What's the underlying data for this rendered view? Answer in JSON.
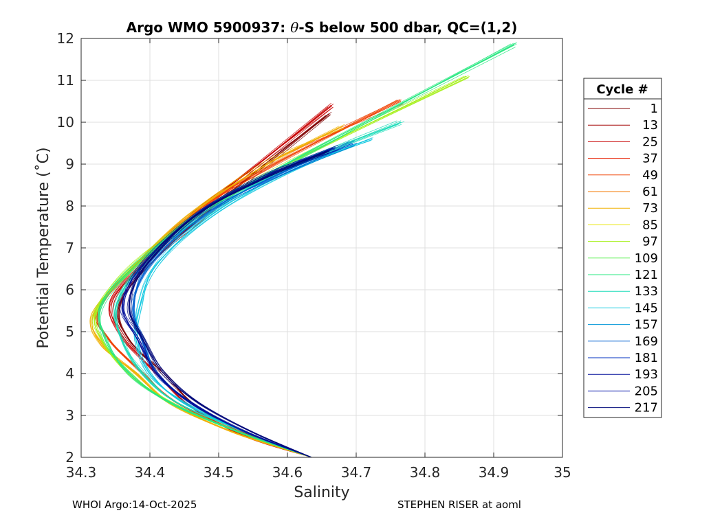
{
  "chart_data": {
    "type": "line",
    "title_prefix": "Argo WMO 5900937: ",
    "title_symbol": "θ",
    "title_suffix": "-S below 500 dbar,  QC=(1,2)",
    "xlabel": "Salinity",
    "ylabel": "Potential Temperature (˚C)",
    "xlim": [
      34.3,
      35
    ],
    "ylim": [
      2,
      12
    ],
    "xticks": [
      "34.3",
      "34.4",
      "34.5",
      "34.6",
      "34.7",
      "34.8",
      "34.9",
      "35"
    ],
    "yticks": [
      "2",
      "3",
      "4",
      "5",
      "6",
      "7",
      "8",
      "9",
      "10",
      "11",
      "12"
    ],
    "grid": true,
    "legend": {
      "title": "Cycle #",
      "placement": "right-outside",
      "entries": [
        {
          "label": "1",
          "color": "#800000"
        },
        {
          "label": "13",
          "color": "#a30000"
        },
        {
          "label": "25",
          "color": "#c80000"
        },
        {
          "label": "37",
          "color": "#e61e00"
        },
        {
          "label": "49",
          "color": "#f04000"
        },
        {
          "label": "61",
          "color": "#f57800"
        },
        {
          "label": "73",
          "color": "#f0b000"
        },
        {
          "label": "85",
          "color": "#e8e600"
        },
        {
          "label": "97",
          "color": "#a6f01a"
        },
        {
          "label": "109",
          "color": "#5af050"
        },
        {
          "label": "121",
          "color": "#28e880"
        },
        {
          "label": "133",
          "color": "#1adcb8"
        },
        {
          "label": "145",
          "color": "#10c8e0"
        },
        {
          "label": "157",
          "color": "#0094d8"
        },
        {
          "label": "169",
          "color": "#0060d0"
        },
        {
          "label": "181",
          "color": "#0030c0"
        },
        {
          "label": "193",
          "color": "#000e9a"
        },
        {
          "label": "205",
          "color": "#0010a8"
        },
        {
          "label": "217",
          "color": "#00087a"
        }
      ]
    },
    "series": [
      {
        "name": "cycle 1",
        "color": "#800000",
        "x": [
          34.635,
          34.55,
          34.47,
          34.42,
          34.37,
          34.355,
          34.4,
          34.48,
          34.56,
          34.66
        ],
        "y": [
          2.0,
          2.5,
          3.2,
          4.0,
          4.8,
          5.6,
          6.6,
          7.8,
          8.9,
          10.2
        ]
      },
      {
        "name": "cycle 25",
        "color": "#c80000",
        "x": [
          34.635,
          34.54,
          34.46,
          34.41,
          34.36,
          34.345,
          34.395,
          34.47,
          34.55,
          34.665
        ],
        "y": [
          2.0,
          2.5,
          3.2,
          4.0,
          4.9,
          5.7,
          6.7,
          7.9,
          8.9,
          10.4
        ]
      },
      {
        "name": "cycle 49",
        "color": "#f04000",
        "x": [
          34.635,
          34.53,
          34.44,
          34.39,
          34.34,
          34.325,
          34.38,
          34.47,
          34.58,
          34.765
        ],
        "y": [
          2.0,
          2.6,
          3.3,
          4.0,
          4.8,
          5.5,
          6.6,
          7.9,
          9.0,
          10.5
        ]
      },
      {
        "name": "cycle 73",
        "color": "#f0b000",
        "x": [
          34.635,
          34.52,
          34.43,
          34.38,
          34.33,
          34.318,
          34.37,
          34.46,
          34.57,
          34.68
        ],
        "y": [
          2.0,
          2.6,
          3.3,
          4.0,
          4.7,
          5.4,
          6.4,
          7.8,
          9.0,
          9.9
        ]
      },
      {
        "name": "cycle 97",
        "color": "#a6f01a",
        "x": [
          34.635,
          34.53,
          34.43,
          34.37,
          34.33,
          34.322,
          34.37,
          34.47,
          34.6,
          34.86
        ],
        "y": [
          2.0,
          2.6,
          3.3,
          4.0,
          4.8,
          5.5,
          6.5,
          7.8,
          9.0,
          11.1
        ]
      },
      {
        "name": "cycle 121",
        "color": "#28e880",
        "x": [
          34.635,
          34.53,
          34.43,
          34.37,
          34.335,
          34.33,
          34.38,
          34.48,
          34.62,
          34.93
        ],
        "y": [
          2.0,
          2.6,
          3.3,
          4.0,
          4.8,
          5.6,
          6.6,
          7.9,
          9.2,
          11.85
        ]
      },
      {
        "name": "cycle 133",
        "color": "#1adcb8",
        "x": [
          34.635,
          34.54,
          34.44,
          34.39,
          34.36,
          34.35,
          34.39,
          34.48,
          34.6,
          34.765
        ],
        "y": [
          2.0,
          2.6,
          3.3,
          4.0,
          4.8,
          5.6,
          6.6,
          7.8,
          8.9,
          10.0
        ]
      },
      {
        "name": "cycle 145",
        "color": "#10c8e0",
        "x": [
          34.635,
          34.54,
          34.45,
          34.4,
          34.38,
          34.385,
          34.41,
          34.49,
          34.6,
          34.72
        ],
        "y": [
          2.0,
          2.6,
          3.3,
          4.0,
          4.8,
          5.6,
          6.6,
          7.8,
          8.8,
          9.6
        ]
      },
      {
        "name": "cycle 169",
        "color": "#0060d0",
        "x": [
          34.635,
          34.54,
          34.46,
          34.41,
          34.39,
          34.375,
          34.4,
          34.48,
          34.58,
          34.695
        ],
        "y": [
          2.0,
          2.6,
          3.3,
          4.0,
          4.8,
          5.6,
          6.6,
          7.8,
          8.7,
          9.5
        ]
      },
      {
        "name": "cycle 193",
        "color": "#000e9a",
        "x": [
          34.635,
          34.54,
          34.46,
          34.41,
          34.385,
          34.36,
          34.39,
          34.47,
          34.57,
          34.67
        ],
        "y": [
          2.0,
          2.6,
          3.3,
          4.0,
          4.8,
          5.6,
          6.6,
          7.8,
          8.7,
          9.4
        ]
      },
      {
        "name": "cycle 217",
        "color": "#00087a",
        "x": [
          34.635,
          34.55,
          34.47,
          34.42,
          34.39,
          34.37,
          34.395,
          34.47,
          34.56,
          34.66
        ],
        "y": [
          2.0,
          2.6,
          3.3,
          4.0,
          4.8,
          5.6,
          6.6,
          7.8,
          8.6,
          9.3
        ]
      }
    ]
  },
  "footer": {
    "left": "WHOI Argo:14-Oct-2025",
    "right": "STEPHEN RISER at aoml"
  }
}
